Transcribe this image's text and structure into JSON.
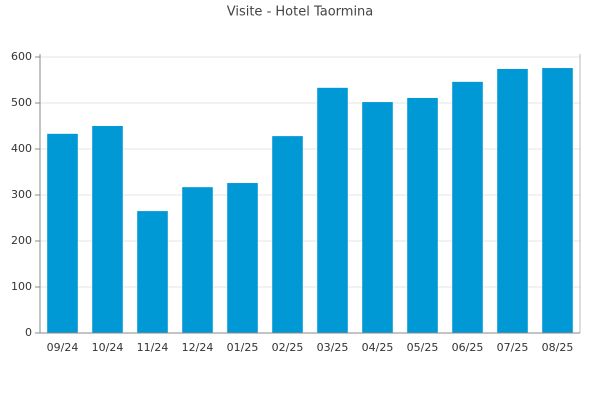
{
  "chart_data": {
    "type": "bar",
    "title": "Visite - Hotel Taormina",
    "categories": [
      "09/24",
      "10/24",
      "11/24",
      "12/24",
      "01/25",
      "02/25",
      "03/25",
      "04/25",
      "05/25",
      "06/25",
      "07/25",
      "08/25"
    ],
    "values": [
      433,
      450,
      265,
      317,
      326,
      428,
      533,
      502,
      511,
      546,
      574,
      576
    ],
    "color": "#0099d6",
    "ylim": [
      0,
      600
    ],
    "yticks": [
      0,
      100,
      200,
      300,
      400,
      500,
      600
    ],
    "grid": true
  }
}
